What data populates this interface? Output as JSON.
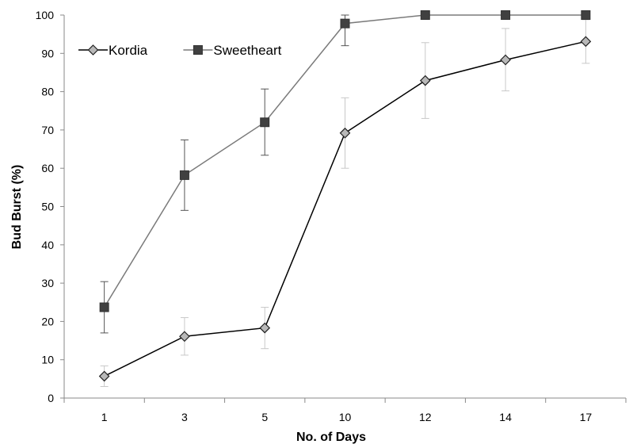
{
  "chart_data": {
    "type": "line",
    "categories": [
      "1",
      "3",
      "5",
      "10",
      "12",
      "14",
      "17"
    ],
    "xlabel": "No. of Days",
    "ylabel": "Bud Burst (%)",
    "ylim": [
      0,
      100
    ],
    "yticks": [
      0,
      10,
      20,
      30,
      40,
      50,
      60,
      70,
      80,
      90,
      100
    ],
    "grid": false,
    "legend_position": "top-left",
    "series": [
      {
        "name": "Kordia",
        "marker": "diamond",
        "marker_color": "#b8b8b8",
        "line_color": "#000000",
        "values": [
          5.7,
          16.1,
          18.3,
          69.2,
          82.9,
          88.3,
          93.1
        ],
        "err_low": [
          3.0,
          11.2,
          12.9,
          60.0,
          73.0,
          80.2,
          87.4
        ],
        "err_high": [
          8.4,
          21.0,
          23.7,
          78.4,
          92.8,
          96.5,
          98.8
        ],
        "errorbar_color": "#c8c8c8"
      },
      {
        "name": "Sweetheart",
        "marker": "square",
        "marker_color": "#404040",
        "line_color": "#7a7a7a",
        "values": [
          23.7,
          58.2,
          72.0,
          97.8,
          100,
          100,
          100
        ],
        "err_low": [
          17.0,
          49.0,
          63.4,
          92.0,
          100,
          100,
          100
        ],
        "err_high": [
          30.4,
          67.4,
          80.7,
          100,
          100,
          100,
          100
        ],
        "errorbar_color": "#555555"
      }
    ]
  }
}
